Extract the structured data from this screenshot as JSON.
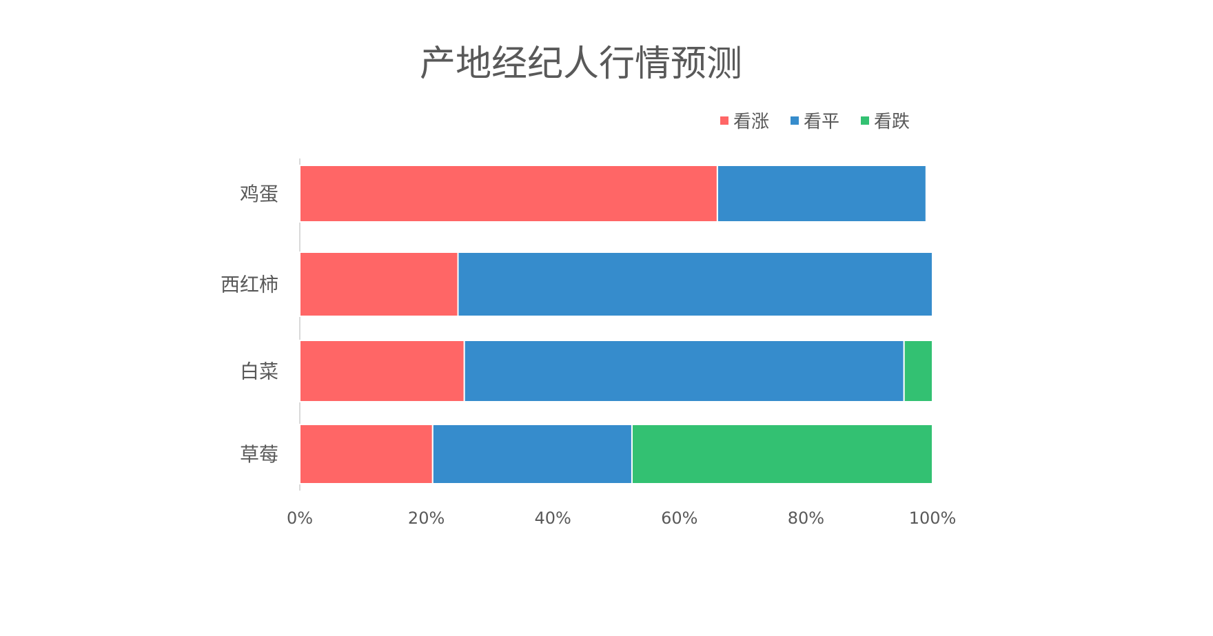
{
  "chart_data": {
    "type": "bar",
    "orientation": "horizontal",
    "stacked": "percent",
    "title": "产地经纪人行情预测",
    "categories": [
      "鸡蛋",
      "西红柿",
      "白菜",
      "草莓"
    ],
    "series": [
      {
        "name": "看涨",
        "color": "#FF6666",
        "values": [
          66,
          25,
          26,
          21
        ]
      },
      {
        "name": "看平",
        "color": "#368CCC",
        "values": [
          33,
          75,
          69.5,
          31.5
        ]
      },
      {
        "name": "看跌",
        "color": "#33C172",
        "values": [
          0,
          0,
          4.5,
          47.5
        ]
      }
    ],
    "x_ticks": [
      "0%",
      "20%",
      "40%",
      "60%",
      "80%",
      "100%"
    ],
    "xlim": [
      0,
      100
    ],
    "legend_position": "top-right",
    "grid": false
  }
}
